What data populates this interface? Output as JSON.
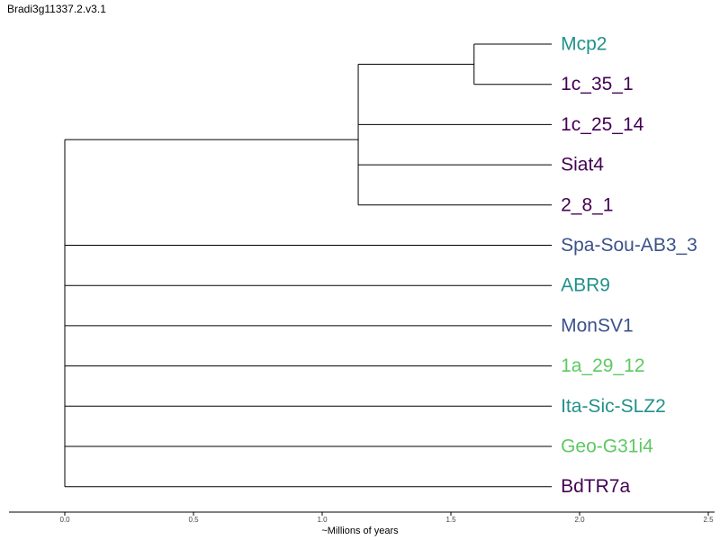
{
  "title": "Bradi3g11337.2.v3.1",
  "chart_data": {
    "type": "tree",
    "xlabel": "~Millions of years",
    "xlim": [
      -0.22,
      2.52
    ],
    "ticks": [
      "0.0",
      "0.5",
      "1.0",
      "1.5",
      "2.0",
      "2.5"
    ],
    "tick_values": [
      0.0,
      0.5,
      1.0,
      1.5,
      2.0,
      2.5
    ],
    "leaf_depth": 1.85,
    "nodes": [
      {
        "id": "root",
        "depth": 0.0
      },
      {
        "id": "n1",
        "depth": 1.14
      },
      {
        "id": "n2",
        "depth": 1.59
      }
    ],
    "leaves": [
      {
        "name": "Mcp2",
        "parent": "n2",
        "color": "#21918c"
      },
      {
        "name": "1c_35_1",
        "parent": "n2",
        "color": "#440154"
      },
      {
        "name": "1c_25_14",
        "parent": "n1",
        "color": "#440154"
      },
      {
        "name": "Siat4",
        "parent": "n1",
        "color": "#440154"
      },
      {
        "name": "2_8_1",
        "parent": "n1",
        "color": "#440154"
      },
      {
        "name": "Spa-Sou-AB3_3",
        "parent": "root",
        "color": "#3b528b"
      },
      {
        "name": "ABR9",
        "parent": "root",
        "color": "#21918c"
      },
      {
        "name": "MonSV1",
        "parent": "root",
        "color": "#3b528b"
      },
      {
        "name": "1a_29_12",
        "parent": "root",
        "color": "#5ec962"
      },
      {
        "name": "Ita-Sic-SLZ2",
        "parent": "root",
        "color": "#21918c"
      },
      {
        "name": "Geo-G31i4",
        "parent": "root",
        "color": "#5ec962"
      },
      {
        "name": "BdTR7a",
        "parent": "root",
        "color": "#440154"
      }
    ],
    "edges": [
      {
        "from": "root",
        "to": "n1"
      },
      {
        "from": "n1",
        "to": "n2"
      }
    ]
  }
}
